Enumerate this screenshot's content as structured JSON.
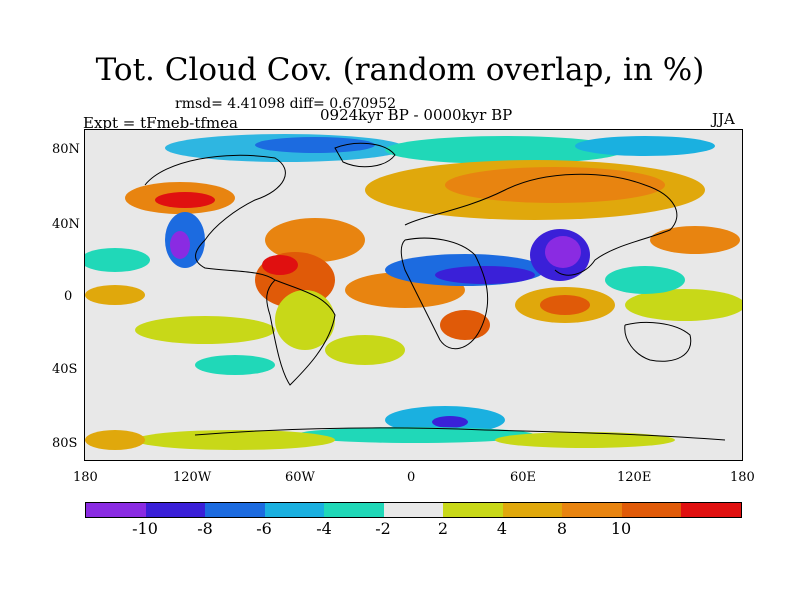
{
  "title": "Tot. Cloud Cov. (random overlap, in %)",
  "stats": "rmsd= 4.41098 diff= 0.670952",
  "experiment": "Expt = tFmeb-tfmea",
  "period": "0924kyr BP - 0000kyr BP",
  "season": "JJA",
  "lat_labels": [
    "80N",
    "40N",
    "0",
    "40S",
    "80S"
  ],
  "lon_labels": [
    "180",
    "120W",
    "60W",
    "0",
    "60E",
    "120E",
    "180"
  ],
  "colorbar": {
    "colors": [
      "#8a2be2",
      "#3a20d8",
      "#1c6be0",
      "#1ab0e0",
      "#20d8b8",
      "#e8e8e8",
      "#c8d818",
      "#e0a80c",
      "#e88410",
      "#e05a08",
      "#e01010"
    ],
    "labels": [
      "-10",
      "-8",
      "-6",
      "-4",
      "-2",
      "2",
      "4",
      "8",
      "10"
    ]
  }
}
